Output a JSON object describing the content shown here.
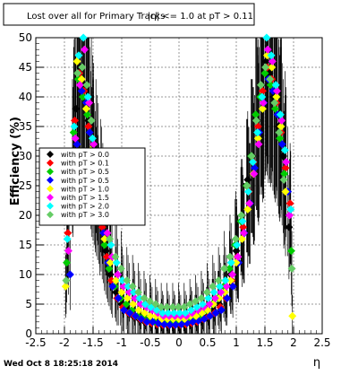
{
  "chart_data": {
    "type": "scatter",
    "title": "Lost over all for Primary Tracks",
    "title_overlap": "|η| <= 1.0 at pT > 0.11",
    "xlabel": "η",
    "ylabel": "Efficiency (%)",
    "xlim": [
      -2.5,
      2.5
    ],
    "ylim": [
      0,
      50
    ],
    "xticks": [
      -2.5,
      -2,
      -1.5,
      -1,
      -0.5,
      0,
      0.5,
      1,
      1.5,
      2,
      2.5
    ],
    "yticks": [
      0,
      5,
      10,
      15,
      20,
      25,
      30,
      35,
      40,
      45,
      50
    ],
    "grid": true,
    "marker": "diamond",
    "error_bars": true,
    "legend_position": "left-middle",
    "series": [
      {
        "name": "with pT > 0.0",
        "color": "#000000",
        "x": [
          -1.92,
          -1.8,
          -1.72,
          -1.64,
          -1.58,
          -1.5,
          -1.44,
          -1.36,
          -1.28,
          -1.2,
          -1.1,
          -1.0,
          -0.9,
          -0.8,
          -0.7,
          -0.6,
          -0.5,
          -0.4,
          -0.3,
          -0.2,
          -0.1,
          0.0,
          0.1,
          0.2,
          0.3,
          0.4,
          0.5,
          0.6,
          0.7,
          0.8,
          0.9,
          1.0,
          1.1,
          1.2,
          1.28,
          1.36,
          1.44,
          1.52,
          1.58,
          1.66,
          1.74,
          1.82,
          1.92
        ],
        "y": [
          19,
          38,
          45,
          42,
          36,
          30,
          24,
          20,
          14,
          10,
          7,
          5,
          4,
          3,
          2.5,
          2,
          2,
          1.8,
          1.5,
          1.5,
          1.5,
          1.5,
          1.5,
          1.8,
          2,
          2.5,
          3,
          4,
          5,
          7,
          10,
          14,
          20,
          26,
          30,
          36,
          42,
          46,
          44,
          40,
          35,
          30,
          18
        ]
      },
      {
        "name": "with pT > 0.1",
        "color": "#ff0000",
        "x": [
          -1.94,
          -1.82,
          -1.74,
          -1.66,
          -1.58,
          -1.5,
          -1.42,
          -1.34,
          -1.26,
          -1.18,
          -1.08,
          -0.98,
          -0.88,
          -0.78,
          -0.68,
          -0.58,
          -0.48,
          -0.38,
          -0.28,
          -0.18,
          -0.08,
          0.02,
          0.12,
          0.22,
          0.32,
          0.42,
          0.52,
          0.62,
          0.72,
          0.82,
          0.92,
          1.02,
          1.12,
          1.22,
          1.3,
          1.38,
          1.46,
          1.54,
          1.62,
          1.7,
          1.78,
          1.86,
          1.94
        ],
        "y": [
          17,
          36,
          44,
          41,
          35,
          28,
          23,
          18,
          13,
          9,
          6,
          4.5,
          3.5,
          3,
          2.5,
          2,
          1.8,
          1.6,
          1.5,
          1.5,
          1.5,
          1.5,
          1.6,
          1.8,
          2,
          2.5,
          3,
          3.5,
          4.5,
          6,
          9,
          13,
          18,
          24,
          29,
          35,
          41,
          45,
          43,
          39,
          34,
          28,
          22
        ]
      },
      {
        "name": "with pT > 0.5",
        "color": "#00cc00",
        "x": [
          -1.96,
          -1.84,
          -1.76,
          -1.68,
          -1.6,
          -1.52,
          -1.46,
          -1.38,
          -1.3,
          -1.22,
          -1.12,
          -1.02,
          -0.92,
          -0.82,
          -0.72,
          -0.62,
          -0.52,
          -0.42,
          -0.32,
          -0.22,
          -0.12,
          -0.02,
          0.08,
          0.18,
          0.28,
          0.38,
          0.48,
          0.58,
          0.68,
          0.78,
          0.88,
          0.98,
          1.08,
          1.18,
          1.26,
          1.34,
          1.42,
          1.5,
          1.6,
          1.68,
          1.76,
          1.84,
          1.96
        ],
        "y": [
          12,
          34,
          43,
          40,
          37,
          29,
          25,
          19,
          15,
          11,
          8,
          6,
          5,
          4,
          3,
          3,
          2.5,
          2,
          2,
          2,
          2,
          2,
          2,
          2.5,
          3,
          3,
          4,
          5,
          6,
          8,
          11,
          15,
          19,
          25,
          30,
          37,
          40,
          44,
          42,
          38,
          33,
          27,
          14
        ]
      },
      {
        "name": "with pT > 0.5",
        "color": "#0000ff",
        "x": [
          -1.9,
          -1.78,
          -1.7,
          -1.62,
          -1.56,
          -1.48,
          -1.4,
          -1.32,
          -1.24,
          -1.16,
          -1.06,
          -0.96,
          -0.86,
          -0.76,
          -0.66,
          -0.56,
          -0.46,
          -0.36,
          -0.26,
          -0.16,
          -0.06,
          0.04,
          0.14,
          0.24,
          0.34,
          0.44,
          0.54,
          0.64,
          0.74,
          0.84,
          0.94,
          1.04,
          1.14,
          1.24,
          1.32,
          1.4,
          1.48,
          1.56,
          1.64,
          1.72,
          1.8,
          1.9
        ],
        "y": [
          10,
          32,
          41,
          39,
          34,
          27,
          22,
          17,
          12,
          8,
          6,
          4,
          3.5,
          3,
          2.5,
          2,
          2,
          1.8,
          1.6,
          1.5,
          1.5,
          1.6,
          1.8,
          2,
          2.2,
          2.5,
          3,
          3.5,
          4,
          6,
          8,
          12,
          17,
          22,
          28,
          34,
          39,
          43,
          41,
          37,
          32,
          24
        ]
      },
      {
        "name": "with pT > 1.0",
        "color": "#ffff00",
        "x": [
          -1.98,
          -1.86,
          -1.78,
          -1.7,
          -1.62,
          -1.54,
          -1.46,
          -1.38,
          -1.3,
          -1.2,
          -1.1,
          -1.0,
          -0.9,
          -0.8,
          -0.7,
          -0.6,
          -0.5,
          -0.4,
          -0.3,
          -0.2,
          -0.1,
          0.0,
          0.1,
          0.2,
          0.3,
          0.4,
          0.5,
          0.6,
          0.7,
          0.8,
          0.9,
          1.0,
          1.1,
          1.2,
          1.3,
          1.38,
          1.46,
          1.54,
          1.62,
          1.7,
          1.78,
          1.86,
          1.98
        ],
        "y": [
          8,
          30,
          46,
          43,
          38,
          31,
          26,
          21,
          16,
          12,
          9,
          7,
          6,
          5,
          4,
          3.5,
          3,
          3,
          2.5,
          2.5,
          2.5,
          2.5,
          2.5,
          3,
          3,
          3.5,
          4,
          5,
          6,
          7,
          9,
          12,
          16,
          21,
          27,
          33,
          38,
          47,
          45,
          40,
          35,
          24,
          3
        ]
      },
      {
        "name": "with pT > 1.5",
        "color": "#ff00ff",
        "x": [
          -1.93,
          -1.81,
          -1.73,
          -1.65,
          -1.57,
          -1.49,
          -1.41,
          -1.33,
          -1.25,
          -1.17,
          -1.07,
          -0.97,
          -0.87,
          -0.77,
          -0.67,
          -0.57,
          -0.47,
          -0.37,
          -0.27,
          -0.17,
          -0.07,
          0.03,
          0.13,
          0.23,
          0.33,
          0.43,
          0.53,
          0.63,
          0.73,
          0.83,
          0.93,
          1.03,
          1.13,
          1.23,
          1.31,
          1.39,
          1.47,
          1.55,
          1.63,
          1.71,
          1.79,
          1.87,
          1.93
        ],
        "y": [
          14,
          33,
          42,
          48,
          39,
          32,
          27,
          22,
          17,
          13,
          10,
          8,
          7,
          6,
          5,
          4.5,
          4,
          3.5,
          3,
          3,
          3,
          3,
          3,
          3.5,
          4,
          4.5,
          5,
          6,
          7,
          8,
          10,
          13,
          17,
          22,
          27,
          32,
          39,
          48,
          46,
          41,
          36,
          29,
          20
        ]
      },
      {
        "name": "with pT > 2.0",
        "color": "#00ffff",
        "x": [
          -1.95,
          -1.83,
          -1.75,
          -1.67,
          -1.59,
          -1.51,
          -1.43,
          -1.35,
          -1.27,
          -1.19,
          -1.09,
          -0.99,
          -0.89,
          -0.79,
          -0.69,
          -0.59,
          -0.49,
          -0.39,
          -0.29,
          -0.19,
          -0.09,
          0.01,
          0.11,
          0.21,
          0.31,
          0.41,
          0.51,
          0.61,
          0.71,
          0.81,
          0.91,
          1.01,
          1.11,
          1.21,
          1.29,
          1.37,
          1.45,
          1.53,
          1.61,
          1.69,
          1.77,
          1.85,
          1.95
        ],
        "y": [
          16,
          35,
          47,
          50,
          40,
          33,
          28,
          24,
          19,
          15,
          12,
          9,
          8,
          7,
          6,
          5,
          4.5,
          4,
          3.5,
          3.5,
          3.5,
          3.5,
          3.5,
          4,
          4.5,
          5,
          6,
          7,
          8,
          9,
          12,
          15,
          19,
          24,
          29,
          34,
          40,
          50,
          47,
          42,
          37,
          31,
          21
        ]
      },
      {
        "name": "with pT > 3.0",
        "color": "#66cc66",
        "x": [
          -1.97,
          -1.85,
          -1.77,
          -1.69,
          -1.61,
          -1.53,
          -1.45,
          -1.37,
          -1.29,
          -1.21,
          -1.11,
          -1.01,
          -0.91,
          -0.81,
          -0.71,
          -0.61,
          -0.51,
          -0.41,
          -0.31,
          -0.21,
          -0.11,
          -0.01,
          0.09,
          0.19,
          0.29,
          0.39,
          0.49,
          0.59,
          0.69,
          0.79,
          0.89,
          0.99,
          1.09,
          1.19,
          1.27,
          1.35,
          1.43,
          1.51,
          1.59,
          1.67,
          1.75,
          1.83,
          1.97
        ],
        "y": [
          9,
          29,
          44,
          45,
          42,
          36,
          30,
          25,
          20,
          16,
          13,
          11,
          9,
          8,
          7,
          6,
          5.5,
          5,
          4.5,
          4.5,
          4.5,
          4.5,
          4.5,
          5,
          5.5,
          6,
          7,
          8,
          9,
          11,
          13,
          16,
          20,
          25,
          30,
          36,
          42,
          45,
          43,
          39,
          34,
          26,
          11
        ]
      }
    ]
  },
  "footer": {
    "timestamp": "Wed Oct  8 18:25:18 2014"
  }
}
